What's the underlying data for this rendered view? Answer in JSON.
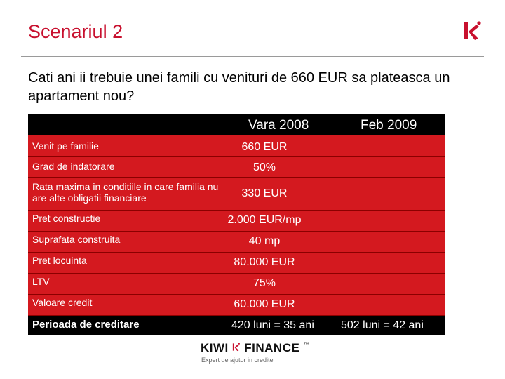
{
  "slide": {
    "title": "Scenariul 2",
    "question": "Cati ani ii trebuie unei famili cu venituri de 660 EUR sa plateasca un apartament nou?"
  },
  "table": {
    "headers": [
      "Vara 2008",
      "Feb 2009"
    ],
    "rows": [
      {
        "label": "Venit pe familie",
        "value": "660 EUR"
      },
      {
        "label": "Grad de indatorare",
        "value": "50%"
      },
      {
        "label": "Rata maxima in conditiile in care familia nu are alte obligatii financiare",
        "value": "330 EUR"
      },
      {
        "label": "Pret constructie",
        "value": "2.000 EUR/mp"
      },
      {
        "label": "Suprafata construita",
        "value": "40 mp"
      },
      {
        "label": "Pret locuinta",
        "value": "80.000 EUR"
      },
      {
        "label": "LTV",
        "value": "75%"
      },
      {
        "label": "Valoare credit",
        "value": "60.000 EUR"
      }
    ],
    "last_row": {
      "label": "Perioada de creditare",
      "value_2008": "420 luni = 35 ani",
      "value_2009": "502 luni = 42 ani"
    }
  },
  "footer": {
    "brand_left": "KIWI",
    "brand_right": "FINANCE",
    "trademark": "™",
    "tagline": "Expert de ajutor in credite"
  },
  "colors": {
    "accent": "#c8102e",
    "row_bg": "#d4191f",
    "header_bg": "#000000"
  },
  "icons": {
    "top_logo": "kiwi-k-logo-icon",
    "footer_logo": "kiwi-finance-logo"
  }
}
